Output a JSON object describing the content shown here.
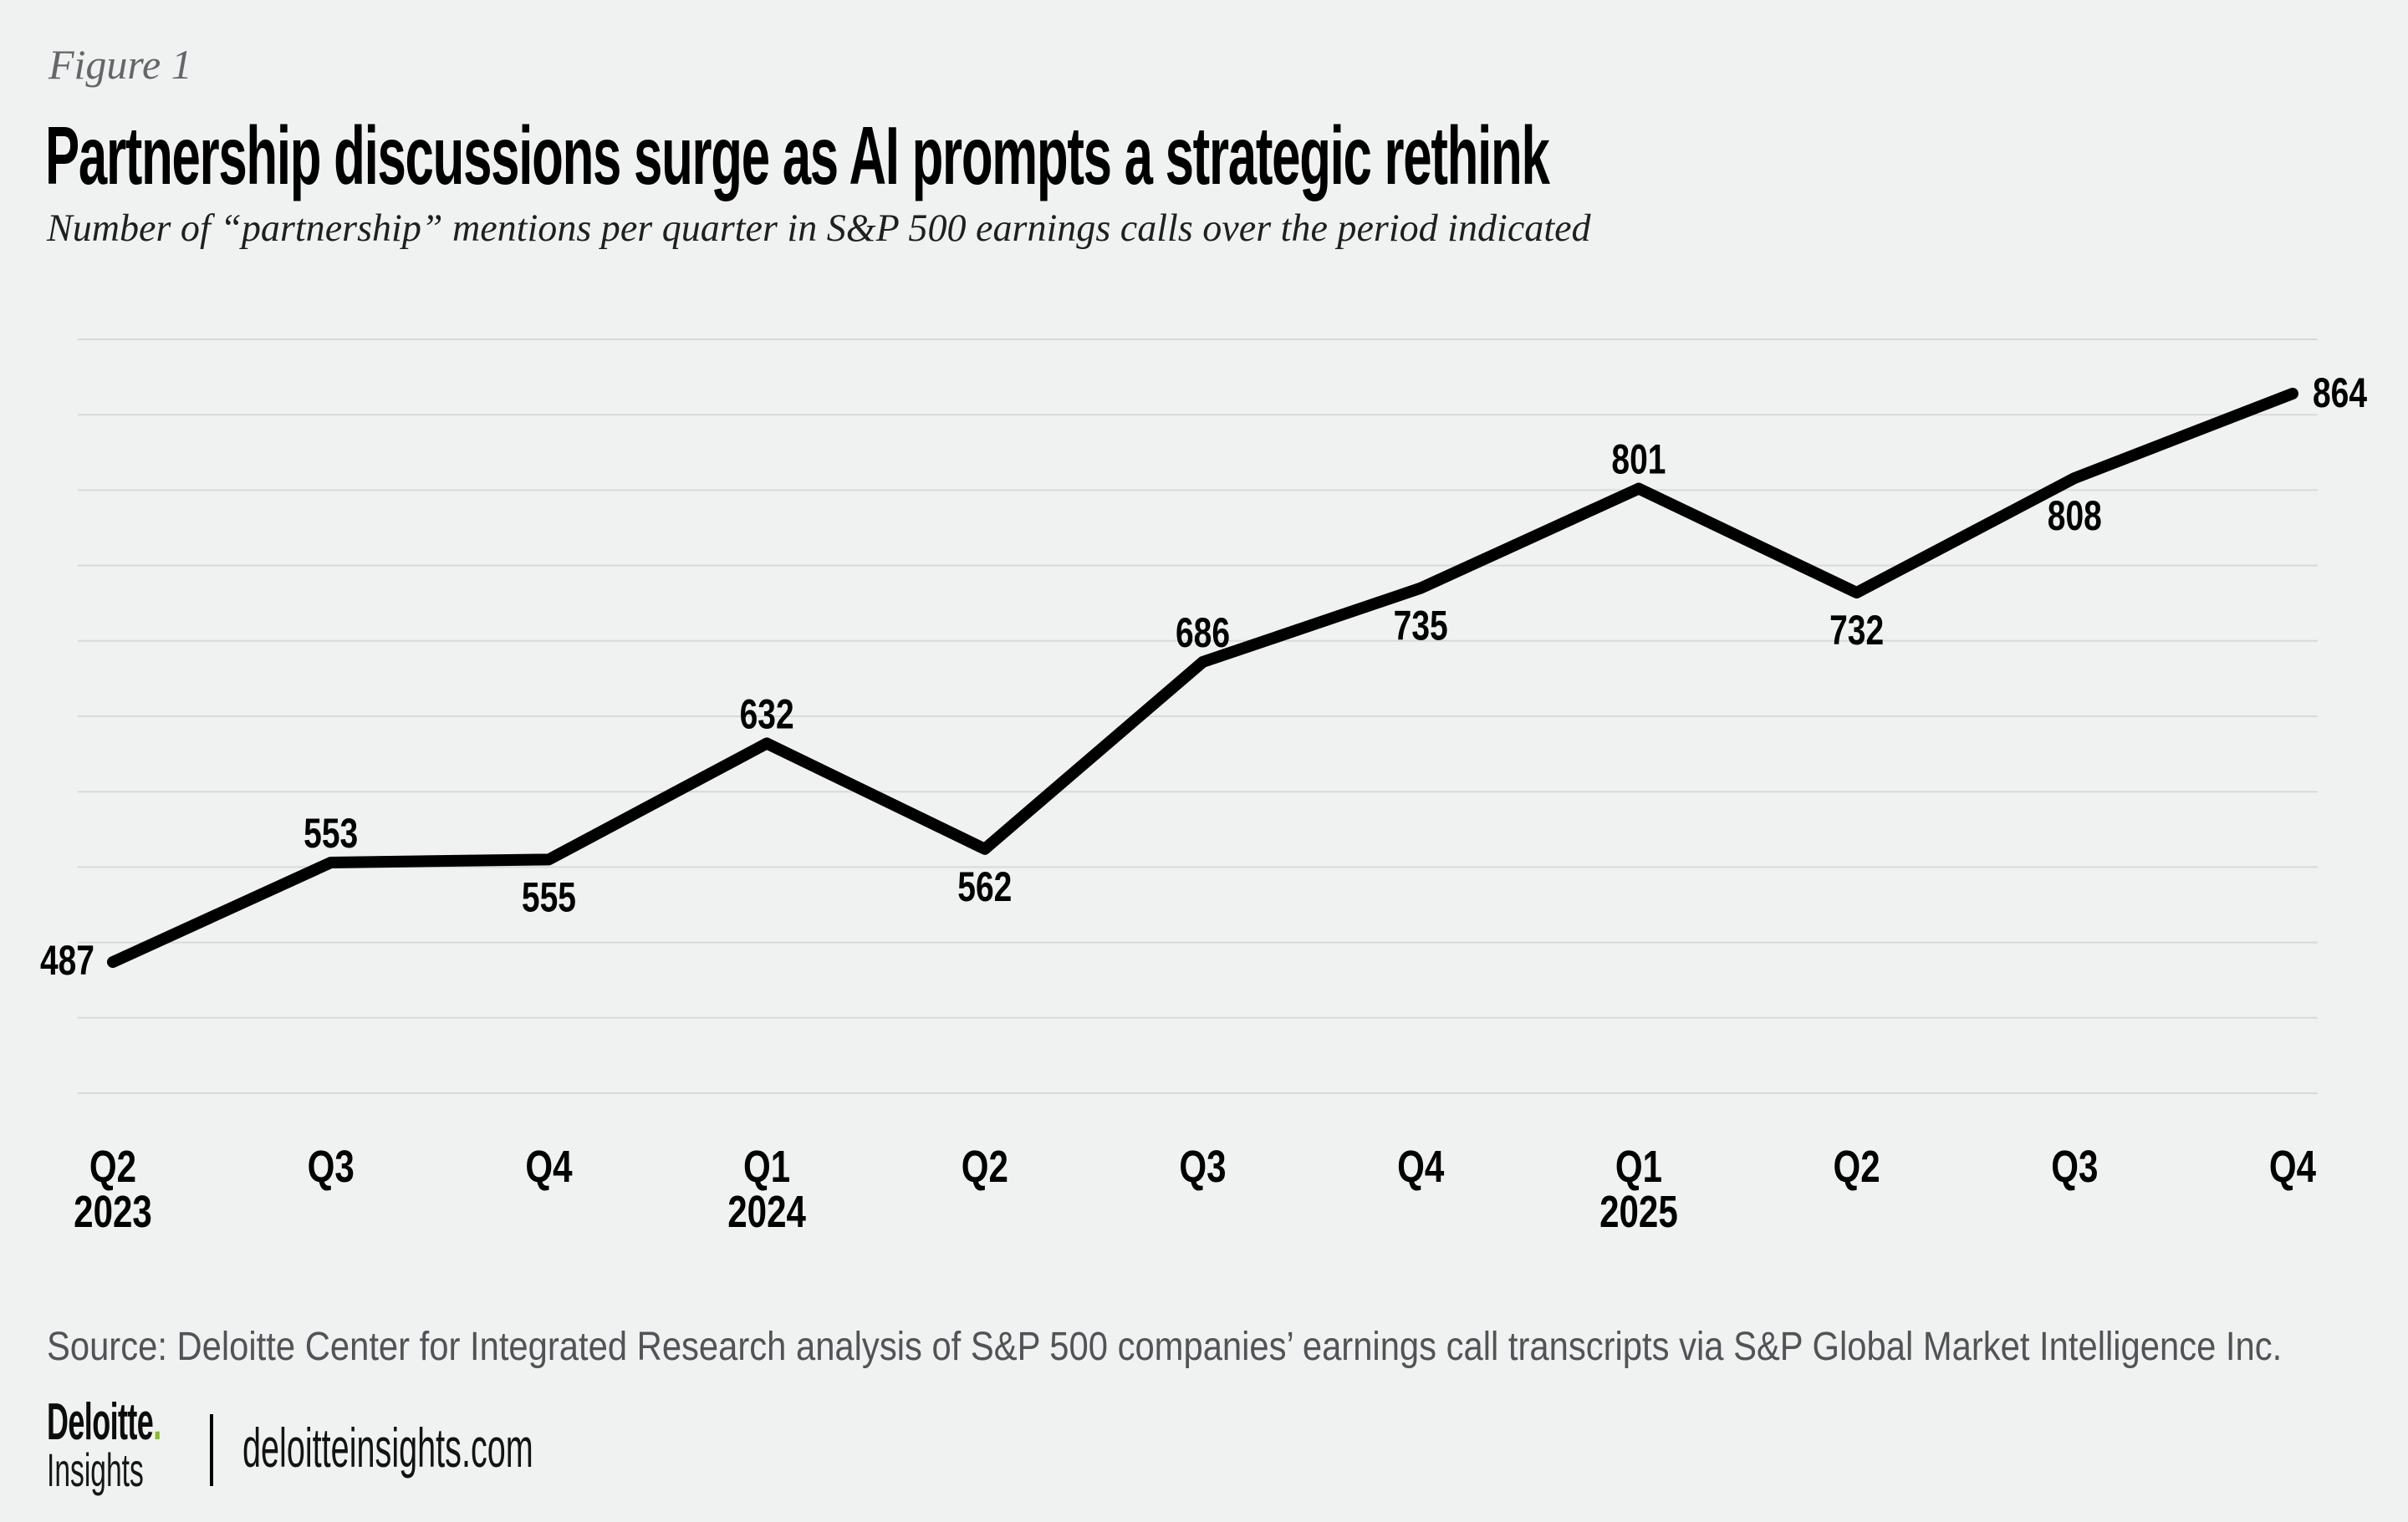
{
  "figure_label": "Figure 1",
  "title": "Partnership discussions surge as AI prompts a strategic rethink",
  "subtitle": "Number of “partnership” mentions per quarter in S&P 500 earnings calls over the period indicated",
  "chart_data": {
    "type": "line",
    "title": "Partnership discussions surge as AI prompts a strategic rethink",
    "subtitle": "Number of “partnership” mentions per quarter in S&P 500 earnings calls over the period indicated",
    "x": [
      "Q2 2023",
      "Q3 2023",
      "Q4 2023",
      "Q1 2024",
      "Q2 2024",
      "Q3 2024",
      "Q4 2024",
      "Q1 2025",
      "Q2 2025",
      "Q3 2025",
      "Q4 2025"
    ],
    "x_tick_labels": [
      [
        "Q2",
        "2023"
      ],
      [
        "Q3"
      ],
      [
        "Q4"
      ],
      [
        "Q1",
        "2024"
      ],
      [
        "Q2"
      ],
      [
        "Q3"
      ],
      [
        "Q4"
      ],
      [
        "Q1",
        "2025"
      ],
      [
        "Q2"
      ],
      [
        "Q3"
      ],
      [
        "Q4"
      ]
    ],
    "values": [
      487,
      553,
      555,
      632,
      562,
      686,
      735,
      801,
      732,
      808,
      864
    ],
    "data_label_positions": [
      "left",
      "above",
      "below",
      "above",
      "below",
      "above",
      "below",
      "above",
      "below",
      "below",
      "right"
    ],
    "ylim": [
      400,
      900
    ],
    "grid_step": 50,
    "grid": "horizontal",
    "legend": "none",
    "line_color": "#000000",
    "gridline_color": "#d8d9da",
    "background_color": "#f0f1f1"
  },
  "source": "Source: Deloitte Center for Integrated Research analysis of S&P 500 companies’ earnings call transcripts via S&P Global Market Intelligence Inc.",
  "footer": {
    "brand": "Deloitte",
    "brand_dot": ".",
    "brand_sub": "Insights",
    "site": "deloitteinsights.com"
  }
}
